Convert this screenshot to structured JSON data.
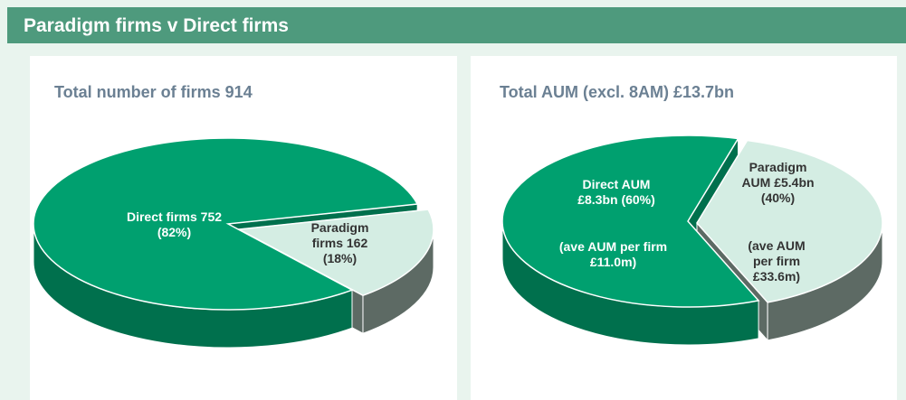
{
  "header": {
    "title": "Paradigm firms v Direct firms"
  },
  "chart_data": [
    {
      "type": "pie3d",
      "title": "Total number of firms 914",
      "categories": [
        "Direct firms",
        "Paradigm firms"
      ],
      "values": [
        752,
        162
      ],
      "labels": [
        [
          "Direct firms 752 (82%)"
        ],
        [
          "Paradigm firms 162 (18%)"
        ]
      ],
      "colors": [
        "#00a06f",
        "#d4ede3"
      ],
      "side_colors": [
        "#00704d",
        "#5d6a64"
      ]
    },
    {
      "type": "pie3d",
      "title": "Total AUM (excl. 8AM) £13.7bn",
      "categories": [
        "Direct AUM",
        "Paradigm AUM"
      ],
      "values": [
        8.3,
        5.4
      ],
      "labels": [
        [
          "Direct AUM £8.3bn (60%)",
          "(ave AUM per firm £11.0m)"
        ],
        [
          "Paradigm AUM £5.4bn (40%)",
          "(ave AUM per firm £33.6m)"
        ]
      ],
      "colors": [
        "#00a06f",
        "#d4ede3"
      ],
      "side_colors": [
        "#00704d",
        "#5d6a64"
      ]
    }
  ]
}
